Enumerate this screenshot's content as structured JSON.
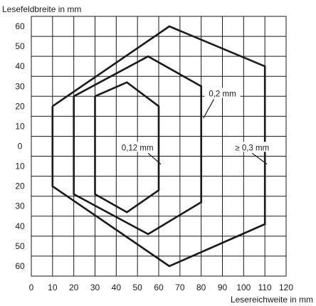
{
  "chart_data": {
    "type": "line",
    "ylabel": "Lesefeldbreite in mm",
    "xlabel": "Lesereichweite in mm",
    "xlim": [
      0,
      120
    ],
    "ylim": [
      -65,
      65
    ],
    "x_ticks": [
      "0",
      "10",
      "20",
      "30",
      "40",
      "50",
      "60",
      "70",
      "80",
      "90",
      "100",
      "110",
      "120"
    ],
    "y_ticks": [
      {
        "value": 60,
        "label": "60"
      },
      {
        "value": 50,
        "label": "50"
      },
      {
        "value": 40,
        "label": "40"
      },
      {
        "value": 30,
        "label": "30"
      },
      {
        "value": 20,
        "label": "20"
      },
      {
        "value": 10,
        "label": "10"
      },
      {
        "value": 0,
        "label": "0"
      },
      {
        "value": -10,
        "label": "10"
      },
      {
        "value": -20,
        "label": "20"
      },
      {
        "value": -30,
        "label": "30"
      },
      {
        "value": -40,
        "label": "40"
      },
      {
        "value": -50,
        "label": "50"
      },
      {
        "value": -60,
        "label": "60"
      }
    ],
    "grid": true,
    "series": [
      {
        "name": "0,12 mm",
        "points": [
          [
            30,
            25
          ],
          [
            45,
            32
          ],
          [
            60,
            20
          ],
          [
            60,
            -22
          ],
          [
            45,
            -33
          ],
          [
            30,
            -24
          ],
          [
            30,
            25
          ]
        ]
      },
      {
        "name": "0,2 mm",
        "points": [
          [
            20,
            25
          ],
          [
            55,
            45
          ],
          [
            80,
            30
          ],
          [
            80,
            -28
          ],
          [
            55,
            -44
          ],
          [
            20,
            -24
          ],
          [
            20,
            25
          ]
        ]
      },
      {
        "name": "≥ 0,3 mm",
        "points": [
          [
            10,
            20
          ],
          [
            65,
            60
          ],
          [
            110,
            40
          ],
          [
            110,
            -39
          ],
          [
            65,
            -60
          ],
          [
            10,
            -20
          ],
          [
            10,
            20
          ]
        ]
      }
    ],
    "annotations": [
      {
        "text": "0,2 mm",
        "series": "0,2 mm"
      },
      {
        "text": "0,12 mm",
        "series": "0,12 mm"
      },
      {
        "text": "≥ 0,3 mm",
        "series": "≥ 0,3 mm"
      }
    ]
  }
}
